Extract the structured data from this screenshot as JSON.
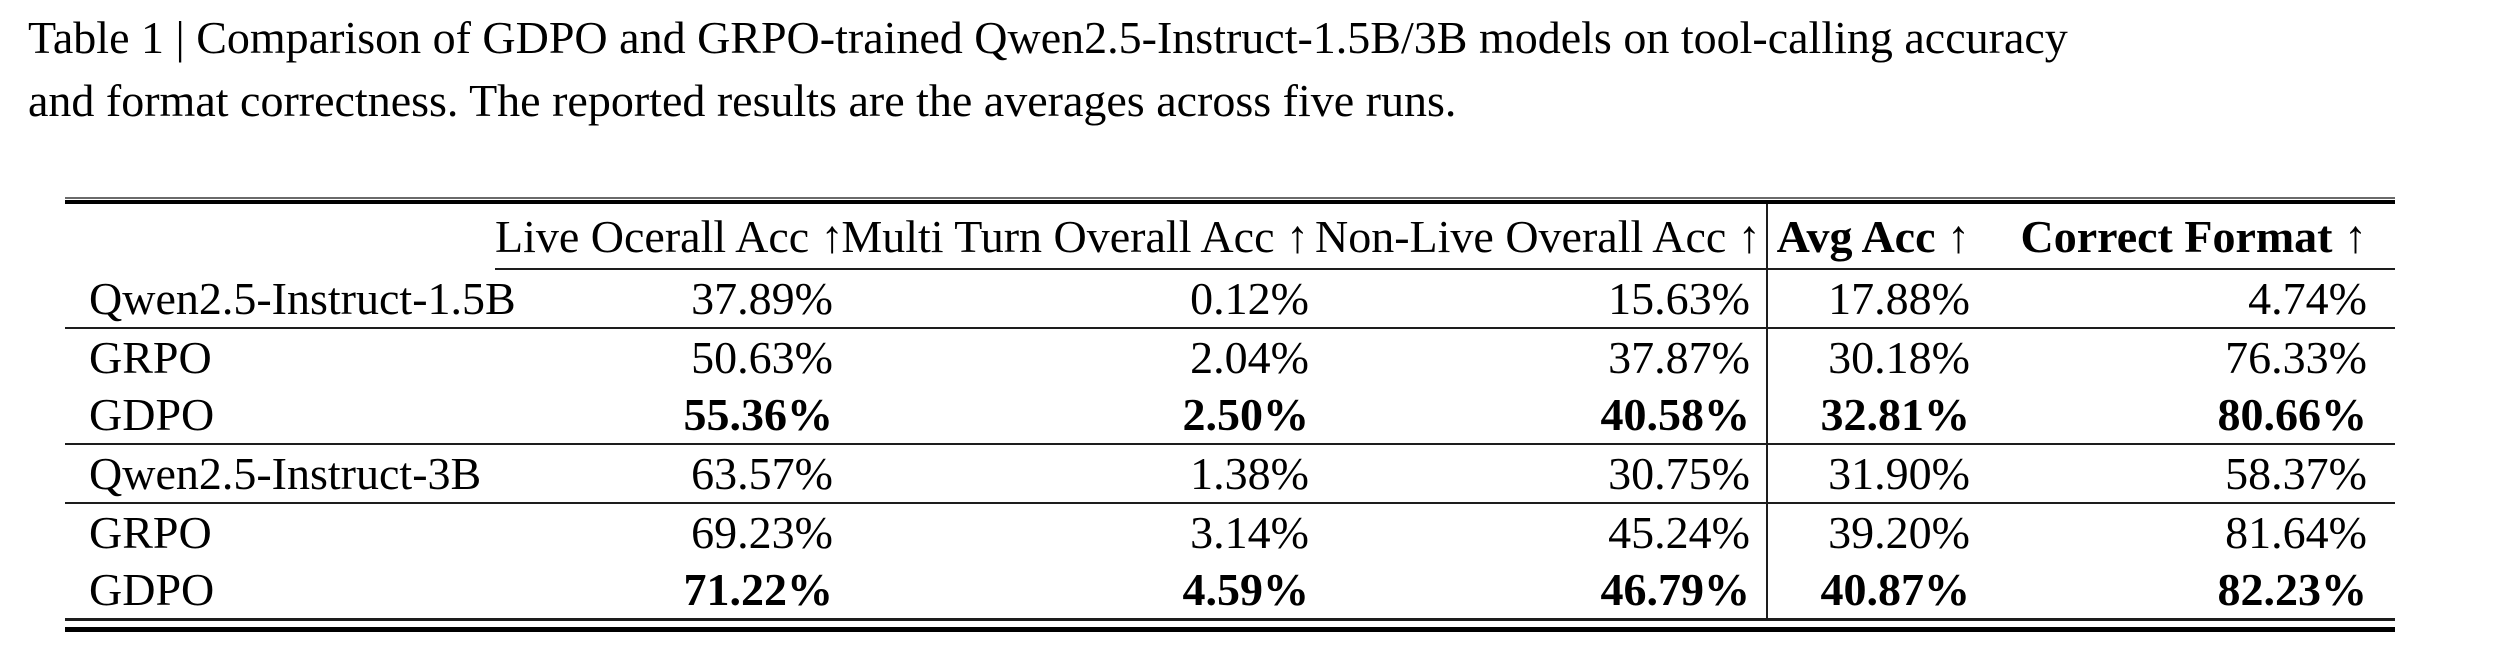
{
  "caption": {
    "line1": "Table 1 | Comparison of GDPO and GRPO-trained Qwen2.5-Instruct-1.5B/3B models on tool-calling accuracy",
    "line2": "and format correctness. The reported results are the averages across five runs."
  },
  "table": {
    "columns": [
      {
        "label": "",
        "bold": false
      },
      {
        "label": "Live Ocerall Acc ↑",
        "bold": false
      },
      {
        "label": "Multi Turn Overall Acc ↑",
        "bold": false
      },
      {
        "label": "Non-Live Overall Acc ↑",
        "bold": false
      },
      {
        "label": "Avg Acc ↑",
        "bold": true
      },
      {
        "label": "Correct Format ↑",
        "bold": true
      }
    ],
    "rows": [
      {
        "label": "Qwen2.5-Instruct-1.5B",
        "values": [
          "37.89%",
          "0.12%",
          "15.63%",
          "17.88%",
          "4.74%"
        ],
        "bold_values": false,
        "rule_below": true
      },
      {
        "label": "GRPO",
        "values": [
          "50.63%",
          "2.04%",
          "37.87%",
          "30.18%",
          "76.33%"
        ],
        "bold_values": false,
        "rule_below": false
      },
      {
        "label": "GDPO",
        "values": [
          "55.36%",
          "2.50%",
          "40.58%",
          "32.81%",
          "80.66%"
        ],
        "bold_values": true,
        "rule_below": true
      },
      {
        "label": "Qwen2.5-Instruct-3B",
        "values": [
          "63.57%",
          "1.38%",
          "30.75%",
          "31.90%",
          "58.37%"
        ],
        "bold_values": false,
        "rule_below": true
      },
      {
        "label": "GRPO",
        "values": [
          "69.23%",
          "3.14%",
          "45.24%",
          "39.20%",
          "81.64%"
        ],
        "bold_values": false,
        "rule_below": false
      },
      {
        "label": "GDPO",
        "values": [
          "71.22%",
          "4.59%",
          "46.79%",
          "40.87%",
          "82.23%"
        ],
        "bold_values": true,
        "rule_below": false
      }
    ]
  }
}
